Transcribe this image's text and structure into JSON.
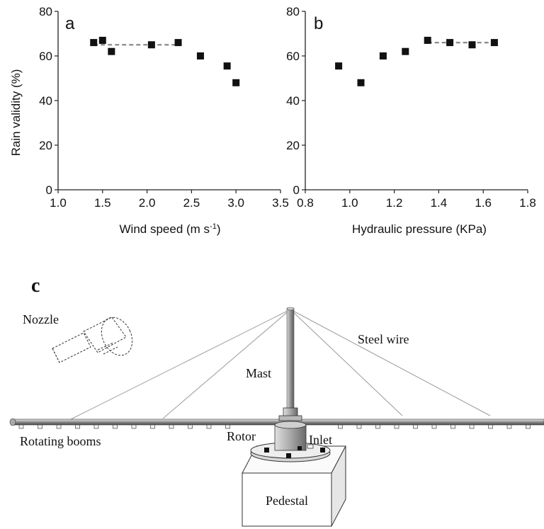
{
  "chart_data": [
    {
      "type": "scatter",
      "panel_label": "a",
      "xlabel": "Wind speed (m s",
      "xlabel_sup": "-1",
      "xlabel_end": ")",
      "ylabel": "Rain validity (%)",
      "xlim": [
        1.0,
        3.5
      ],
      "ylim": [
        0,
        80
      ],
      "x_ticks": [
        "1.0",
        "1.5",
        "2.0",
        "2.5",
        "3.0",
        "3.5"
      ],
      "y_ticks": [
        "0",
        "20",
        "40",
        "60",
        "80"
      ],
      "points": [
        {
          "x": 1.4,
          "y": 66
        },
        {
          "x": 1.5,
          "y": 67
        },
        {
          "x": 1.6,
          "y": 62
        },
        {
          "x": 2.05,
          "y": 65
        },
        {
          "x": 2.35,
          "y": 66
        },
        {
          "x": 2.6,
          "y": 60
        },
        {
          "x": 2.9,
          "y": 55.5
        },
        {
          "x": 3.0,
          "y": 48
        }
      ],
      "reference_line": {
        "x": [
          1.4,
          2.35
        ],
        "y": [
          65,
          65
        ],
        "style": "dashed",
        "color": "#8a8a8a"
      }
    },
    {
      "type": "scatter",
      "panel_label": "b",
      "xlabel": "Hydraulic pressure (KPa)",
      "ylabel": "",
      "xlim": [
        0.8,
        1.8
      ],
      "ylim": [
        0,
        80
      ],
      "x_ticks": [
        "0.8",
        "1.0",
        "1.2",
        "1.4",
        "1.6",
        "1.8"
      ],
      "y_ticks": [
        "0",
        "20",
        "40",
        "60",
        "80"
      ],
      "points": [
        {
          "x": 0.95,
          "y": 55.5
        },
        {
          "x": 1.05,
          "y": 48
        },
        {
          "x": 1.15,
          "y": 60
        },
        {
          "x": 1.25,
          "y": 62
        },
        {
          "x": 1.35,
          "y": 67
        },
        {
          "x": 1.45,
          "y": 66
        },
        {
          "x": 1.55,
          "y": 65
        },
        {
          "x": 1.65,
          "y": 66
        }
      ],
      "reference_line": {
        "x": [
          1.35,
          1.65
        ],
        "y": [
          66,
          66
        ],
        "style": "dashed",
        "color": "#8a8a8a"
      }
    }
  ],
  "diagram": {
    "panel_label": "c",
    "labels": {
      "nozzle": "Nozzle",
      "steel_wire": "Steel wire",
      "mast": "Mast",
      "rotor": "Rotor",
      "inlet": "Inlet",
      "rotating_booms": "Rotating booms",
      "pedestal": "Pedestal"
    }
  },
  "colors": {
    "marker": "#111111",
    "axis": "#222222",
    "dashed_line": "#8a8a8a",
    "wire": "#9a9a9a"
  }
}
